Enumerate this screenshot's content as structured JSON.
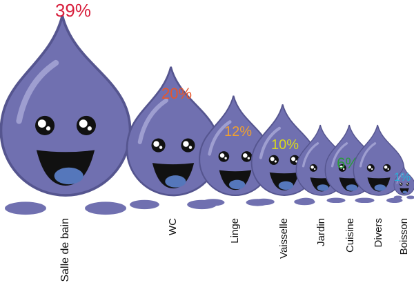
{
  "chart_data": {
    "type": "bar",
    "categories": [
      "Salle de bain",
      "WC",
      "Linge",
      "Vaisselle",
      "Jardin",
      "Cuisine",
      "Divers",
      "Boisson"
    ],
    "values": [
      39,
      20,
      12,
      10,
      6,
      6,
      6,
      1
    ],
    "value_labels": [
      "39%",
      "20%",
      "12%",
      "10%",
      "",
      "6%",
      "",
      "1%"
    ],
    "label_colors": [
      "#d81e3c",
      "#e8562a",
      "#f0a030",
      "#d8d81e",
      "#2a9a3a",
      "#2a9a3a",
      "#2a9a3a",
      "#28b0d8"
    ],
    "unit": "%",
    "title": "",
    "xlabel": "",
    "ylabel": ""
  },
  "style": {
    "drop_fill": "#7070b0",
    "drop_stroke": "#55558f",
    "highlight": "#9e9ed0",
    "mouth": "#111111",
    "tongue": "#5577bb"
  }
}
